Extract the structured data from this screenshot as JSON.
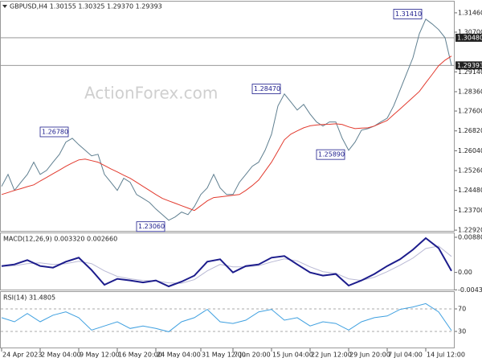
{
  "chart_data": [
    {
      "type": "line",
      "title": "GBPUSD,H4  1.30155 1.30325 1.29370 1.29393",
      "watermark": "ActionForex.com",
      "ylim": [
        1.2286,
        1.319
      ],
      "yticks": [
        {
          "value": 1.3146,
          "label": "1.31460"
        },
        {
          "value": 1.307,
          "label": "1.30700"
        },
        {
          "value": 1.2914,
          "label": "1.29140"
        },
        {
          "value": 1.2836,
          "label": "1.28360"
        },
        {
          "value": 1.276,
          "label": "1.27600"
        },
        {
          "value": 1.2682,
          "label": "1.26820"
        },
        {
          "value": 1.2604,
          "label": "1.26040"
        },
        {
          "value": 1.2526,
          "label": "1.25260"
        },
        {
          "value": 1.2448,
          "label": "1.24480"
        },
        {
          "value": 1.237,
          "label": "1.23700"
        },
        {
          "value": 1.2292,
          "label": "1.22920"
        }
      ],
      "hlines": [
        {
          "value": 1.3048,
          "label": "1.30480"
        },
        1.29393
      ],
      "annotations": [
        {
          "x": 66,
          "value": 1.3141,
          "label": "1.31410"
        },
        {
          "x": 44,
          "value": 1.2847,
          "label": "1.28470"
        },
        {
          "x": 11,
          "value": 1.2678,
          "label": "1.26780"
        },
        {
          "x": 54,
          "value": 1.2589,
          "label": "1.25890"
        },
        {
          "x": 26,
          "value": 1.2306,
          "label": "1.23060"
        }
      ],
      "xticks": [
        {
          "value": 0,
          "label": "24 Apr 2023"
        },
        {
          "value": 6,
          "label": "2 May 04:00"
        },
        {
          "value": 12,
          "label": "9 May 12:00"
        },
        {
          "value": 18,
          "label": "16 May 20:00"
        },
        {
          "value": 24,
          "label": "24 May 04:00"
        },
        {
          "value": 31,
          "label": "31 May 12:00"
        },
        {
          "value": 36,
          "label": "7 Jun 20:00"
        },
        {
          "value": 42,
          "label": "15 Jun 04:00"
        },
        {
          "value": 48,
          "label": "22 Jun 12:00"
        },
        {
          "value": 54,
          "label": "29 Jun 20:00"
        },
        {
          "value": 60,
          "label": "7 Jul 04:00"
        },
        {
          "value": 66,
          "label": "14 Jul 12:00"
        }
      ],
      "series": [
        {
          "color": "#5f7f90",
          "values": [
            1.2464,
            1.2511,
            1.2448,
            1.248,
            1.2511,
            1.2559,
            1.2511,
            1.2527,
            1.2559,
            1.259,
            1.2638,
            1.2653,
            1.2628,
            1.2606,
            1.2584,
            1.259,
            1.2511,
            1.248,
            1.2448,
            1.2496,
            1.248,
            1.2432,
            1.2417,
            1.2401,
            1.2375,
            1.2353,
            1.2331,
            1.2344,
            1.2363,
            1.2353,
            1.2385,
            1.2432,
            1.2458,
            1.2511,
            1.2458,
            1.2432,
            1.2432,
            1.248,
            1.2511,
            1.2543,
            1.2559,
            1.2606,
            1.2669,
            1.278,
            1.2827,
            1.2796,
            1.2764,
            1.2786,
            1.2748,
            1.2717,
            1.2701,
            1.2717,
            1.2717,
            1.2653,
            1.2606,
            1.2638,
            1.2685,
            1.2691,
            1.2701,
            1.2717,
            1.2732,
            1.278,
            1.2843,
            1.2906,
            1.2969,
            1.3064,
            1.3121,
            1.3102,
            1.308,
            1.3048,
            1.29393
          ]
        },
        {
          "color": "#e23a2e",
          "values": [
            1.2432,
            1.244,
            1.2448,
            1.2455,
            1.2463,
            1.247,
            1.2485,
            1.2499,
            1.2514,
            1.2528,
            1.2543,
            1.2556,
            1.2568,
            1.2571,
            1.2565,
            1.2559,
            1.2546,
            1.2533,
            1.2521,
            1.2508,
            1.2496,
            1.248,
            1.2464,
            1.2448,
            1.2432,
            1.2417,
            1.2407,
            1.2398,
            1.2388,
            1.2379,
            1.2369,
            1.2388,
            1.2407,
            1.242,
            1.2423,
            1.2426,
            1.2429,
            1.2432,
            1.2448,
            1.2467,
            1.2489,
            1.2524,
            1.2559,
            1.2603,
            1.2647,
            1.2669,
            1.2682,
            1.2694,
            1.2702,
            1.2705,
            1.2707,
            1.2708,
            1.271,
            1.2707,
            1.2698,
            1.2691,
            1.2693,
            1.2694,
            1.2701,
            1.2712,
            1.2723,
            1.2746,
            1.2768,
            1.2791,
            1.2814,
            1.2837,
            1.2871,
            1.2904,
            1.2938,
            1.296,
            1.2976
          ]
        }
      ]
    },
    {
      "type": "line",
      "title": "MACD(12,26,9) 0.003320 0.002660",
      "ylim": [
        -0.0045,
        0.0098
      ],
      "yticks": [
        0.008804,
        {
          "value": 0,
          "label": "0.00"
        },
        -0.004354
      ],
      "series": [
        {
          "color": "#b9b9d4",
          "values": [
            0.0015,
            0.0017,
            0.0022,
            0.0024,
            0.002,
            0.0022,
            0.0028,
            0.0022,
            0.0004,
            -0.001,
            -0.0016,
            -0.002,
            -0.0021,
            -0.0026,
            -0.0027,
            -0.0018,
            0.0004,
            0.002,
            0.0014,
            0.0014,
            0.0017,
            0.0026,
            0.0034,
            0.0029,
            0.0014,
            0.0002,
            -0.0002,
            -0.0016,
            -0.002,
            -0.0012,
            0.0002,
            0.0018,
            0.0036,
            0.006,
            0.0066,
            0.004
          ]
        },
        {
          "color": "#1c1c8c",
          "values": [
            0.0016,
            0.002,
            0.0031,
            0.0016,
            0.0012,
            0.0027,
            0.0037,
            0.0006,
            -0.0031,
            -0.0016,
            -0.002,
            -0.0025,
            -0.002,
            -0.0035,
            -0.0023,
            -0.0008,
            0.0027,
            0.0033,
            0,
            0.0016,
            0.002,
            0.0037,
            0.0041,
            0.002,
            0,
            -0.0008,
            -0.0004,
            -0.0033,
            -0.002,
            -0.0004,
            0.0016,
            0.0033,
            0.0057,
            0.0086,
            0.0061,
            0.0004
          ]
        }
      ]
    },
    {
      "type": "line",
      "title": "RSI(14) 31.4805",
      "ylim": [
        0,
        100
      ],
      "yticks": [
        70,
        30
      ],
      "grid": true,
      "series": [
        {
          "color": "#3fa0e0",
          "values": [
            54.4,
            47.1,
            61.8,
            47.1,
            58.8,
            64.7,
            54.4,
            32.4,
            39.7,
            47.1,
            35.3,
            39.7,
            35.3,
            29.4,
            47.1,
            54.4,
            69.1,
            47.1,
            44.1,
            50,
            64.7,
            69.1,
            50,
            54.4,
            39.7,
            47.1,
            44.1,
            32.4,
            47.1,
            54.4,
            57.4,
            69.1,
            73.5,
            79.4,
            64.7,
            31.5
          ]
        }
      ]
    }
  ]
}
